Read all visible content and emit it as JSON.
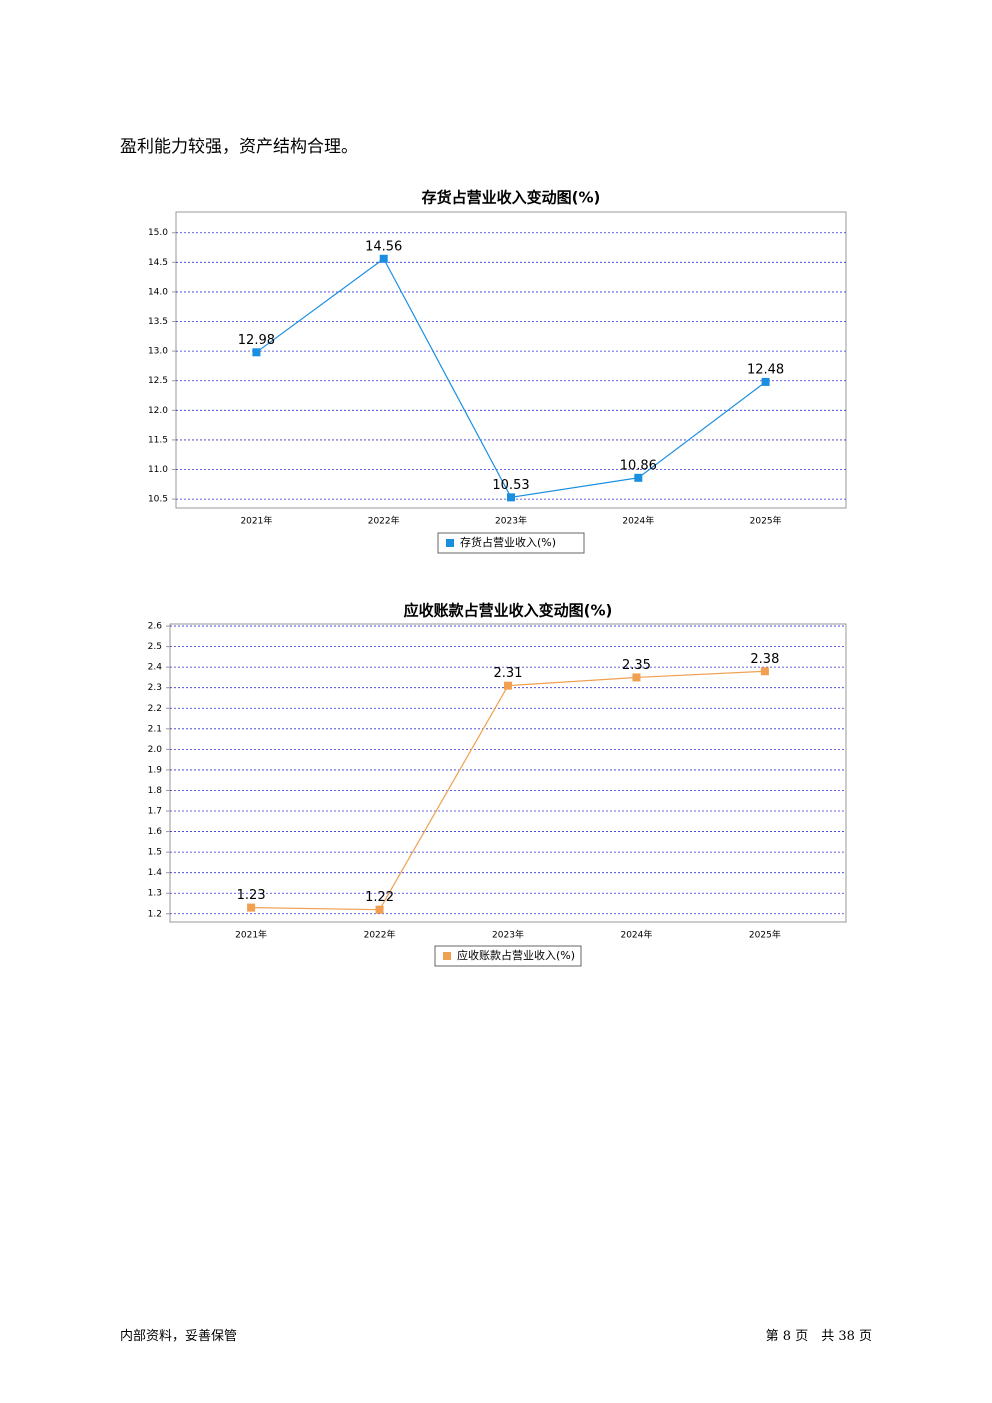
{
  "body_text": "盈利能力较强，资产结构合理。",
  "chart_data": [
    {
      "type": "line",
      "title": "存货占营业收入变动图(%)",
      "categories": [
        "2021年",
        "2022年",
        "2023年",
        "2024年",
        "2025年"
      ],
      "series": [
        {
          "name": "存货占营业收入(%)",
          "color": "#1a8fe0",
          "values": [
            12.98,
            14.56,
            10.53,
            10.86,
            12.48
          ]
        }
      ],
      "ylim": [
        10.35,
        15.35
      ],
      "yticks": [
        10.5,
        {
          "value": 11,
          "label": "11.0"
        },
        11.5,
        {
          "value": 12,
          "label": "12.0"
        },
        12.5,
        {
          "value": 13,
          "label": "13.0"
        },
        13.5,
        {
          "value": 14,
          "label": "14.0"
        },
        14.5,
        {
          "value": 15,
          "label": "15.0"
        }
      ],
      "grid": true
    },
    {
      "type": "line",
      "title": "应收账款占营业收入变动图(%)",
      "categories": [
        "2021年",
        "2022年",
        "2023年",
        "2024年",
        "2025年"
      ],
      "series": [
        {
          "name": "应收账款占营业收入(%)",
          "color": "#f0a050",
          "values": [
            1.23,
            1.22,
            2.31,
            2.35,
            2.38
          ]
        }
      ],
      "ylim": [
        1.16,
        2.61
      ],
      "yticks": [
        1.2,
        1.3,
        1.4,
        1.5,
        1.6,
        1.7,
        1.8,
        1.9,
        {
          "value": 2,
          "label": "2.0"
        },
        2.1,
        2.2,
        2.3,
        2.4,
        2.5,
        2.6
      ],
      "grid": true
    }
  ],
  "footer": {
    "left": "内部资料，妥善保管",
    "right": "第 8 页　共 38 页"
  }
}
